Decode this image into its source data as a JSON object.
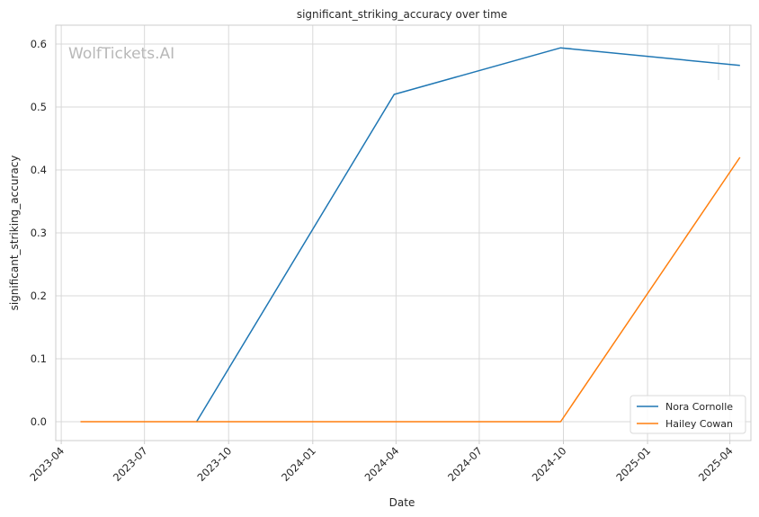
{
  "chart_data": {
    "type": "line",
    "title": "significant_striking_accuracy over time",
    "xlabel": "Date",
    "ylabel": "significant_striking_accuracy",
    "watermark": "WolfTickets.AI",
    "x_ticks": [
      "2023-04",
      "2023-07",
      "2023-10",
      "2024-01",
      "2024-04",
      "2024-07",
      "2024-10",
      "2025-01",
      "2025-04"
    ],
    "y_ticks": [
      "0.0",
      "0.1",
      "0.2",
      "0.3",
      "0.4",
      "0.5",
      "0.6"
    ],
    "xlim": [
      "2023-03-26",
      "2025-04-24"
    ],
    "ylim": [
      -0.03,
      0.63
    ],
    "grid": true,
    "legend_position": "bottom-right",
    "series": [
      {
        "name": "Nora Cornolle",
        "color": "#1f77b4",
        "x": [
          "2023-08-27",
          "2024-03-30",
          "2024-09-28",
          "2025-04-12"
        ],
        "values": [
          0.0,
          0.52,
          0.594,
          0.566
        ]
      },
      {
        "name": "Hailey Cowan",
        "color": "#ff7f0e",
        "x": [
          "2023-04-22",
          "2024-09-28",
          "2025-04-12"
        ],
        "values": [
          0.0,
          0.0,
          0.42
        ]
      }
    ]
  }
}
